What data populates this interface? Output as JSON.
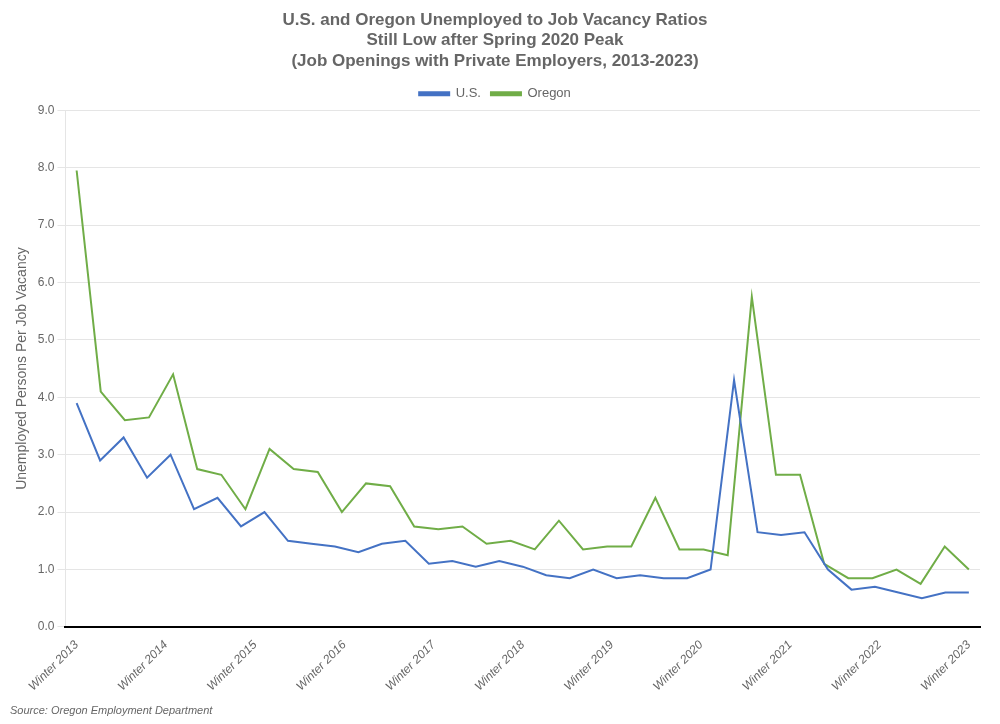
{
  "chart_data": {
    "type": "line",
    "title": "U.S. and Oregon Unemployed to Job Vacancy Ratios\nStill Low after Spring 2020 Peak\n(Job Openings with Private Employers, 2013-2023)",
    "y_label": "Unemployed Persons Per Job Vacancy",
    "annotations": [
      "Source: Oregon Employment Department"
    ],
    "xlim": [
      -0.5,
      40.5
    ],
    "xticks": [
      {
        "value": 0,
        "label": "Winter 2013"
      },
      {
        "value": 4,
        "label": "Winter 2014"
      },
      {
        "value": 8,
        "label": "Winter 2015"
      },
      {
        "value": 12,
        "label": "Winter 2016"
      },
      {
        "value": 16,
        "label": "Winter 2017"
      },
      {
        "value": 20,
        "label": "Winter 2018"
      },
      {
        "value": 24,
        "label": "Winter 2019"
      },
      {
        "value": 28,
        "label": "Winter 2020"
      },
      {
        "value": 32,
        "label": "Winter 2021"
      },
      {
        "value": 36,
        "label": "Winter 2022"
      },
      {
        "value": 40,
        "label": "Winter 2023"
      }
    ],
    "ylim": [
      0.0,
      9.0
    ],
    "yticks": [
      {
        "value": 0,
        "label": "0.0"
      },
      {
        "value": 1,
        "label": "1.0"
      },
      {
        "value": 2,
        "label": "2.0"
      },
      {
        "value": 3,
        "label": "3.0"
      },
      {
        "value": 4,
        "label": "4.0"
      },
      {
        "value": 5,
        "label": "5.0"
      },
      {
        "value": 6,
        "label": "6.0"
      },
      {
        "value": 7,
        "label": "7.0"
      },
      {
        "value": 8,
        "label": "8.0"
      },
      {
        "value": 9,
        "label": "9.0"
      }
    ],
    "grid": "y",
    "legend": "top",
    "series": [
      {
        "name": "U.S.",
        "color": "#4472C4",
        "x": [
          0,
          1.052632,
          2.105263,
          3.157895,
          4.210526,
          5.263158,
          6.315789,
          7.368421,
          8.421053,
          9.473684,
          10.526316,
          11.578947,
          12.631579,
          13.684211,
          14.736842,
          15.789474,
          16.842105,
          17.894737,
          18.947368,
          20,
          21.052632,
          22.105263,
          23.157895,
          24.210526,
          25.263158,
          26.315789,
          27.368421,
          28.421053,
          29.473684,
          30.526316,
          31.578947,
          32.631579,
          33.684211,
          34.736842,
          35.789474,
          36.842105,
          37.894737,
          38.947368,
          40
        ],
        "values": [
          3.9,
          2.9,
          3.3,
          2.6,
          3.0,
          2.05,
          2.25,
          1.75,
          2.0,
          1.5,
          1.45,
          1.4,
          1.3,
          1.45,
          1.5,
          1.1,
          1.15,
          1.05,
          1.15,
          1.05,
          0.9,
          0.85,
          1.0,
          0.85,
          0.9,
          0.85,
          0.85,
          1.0,
          4.3,
          1.65,
          1.6,
          1.65,
          1.0,
          0.65,
          0.7,
          0.6,
          0.5,
          0.6,
          0.6
        ]
      },
      {
        "name": "Oregon",
        "color": "#70AD47",
        "x": [
          0,
          1.081081,
          2.162162,
          3.243243,
          4.324324,
          5.405405,
          6.486486,
          7.567568,
          8.648649,
          9.72973,
          10.810811,
          11.891892,
          12.972973,
          14.054054,
          15.135135,
          16.216216,
          17.297297,
          18.378378,
          19.459459,
          20.540541,
          21.621622,
          22.702703,
          23.783784,
          24.864865,
          25.945946,
          27.027027,
          28.108108,
          29.189189,
          30.27027,
          31.351351,
          32.432432,
          33.513514,
          34.594595,
          35.675676,
          36.756757,
          37.837838,
          38.918919,
          40
        ],
        "values": [
          7.95,
          4.1,
          3.6,
          3.65,
          4.4,
          2.75,
          2.65,
          2.05,
          3.1,
          2.75,
          2.7,
          2.0,
          2.5,
          2.45,
          1.75,
          1.7,
          1.75,
          1.45,
          1.5,
          1.35,
          1.85,
          1.35,
          1.4,
          1.4,
          2.25,
          1.35,
          1.35,
          1.25,
          5.75,
          2.65,
          2.65,
          1.1,
          0.85,
          0.85,
          1.0,
          0.75,
          1.4,
          1.0
        ]
      }
    ]
  }
}
